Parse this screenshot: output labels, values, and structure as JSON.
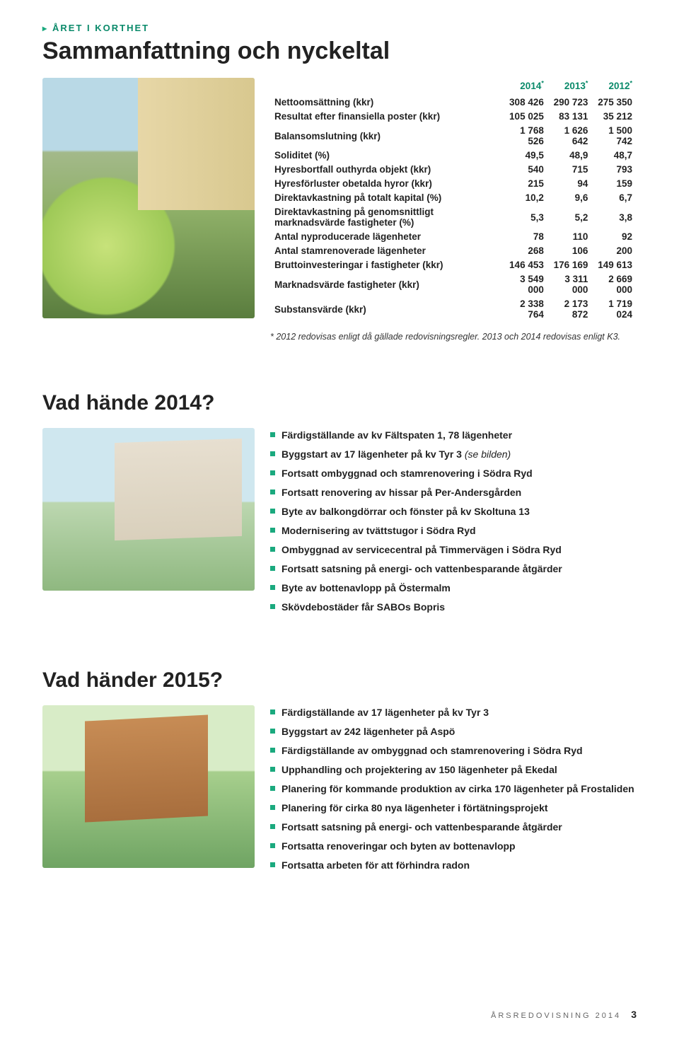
{
  "section_tag": "ÅRET I KORTHET",
  "main_title": "Sammanfattning och nyckeltal",
  "kpi": {
    "headers": [
      "2014*",
      "2013*",
      "2012*"
    ],
    "rows": [
      {
        "label": "Nettoomsättning (kkr)",
        "v": [
          "308 426",
          "290 723",
          "275 350"
        ]
      },
      {
        "label": "Resultat efter finansiella poster (kkr)",
        "v": [
          "105 025",
          "83 131",
          "35 212"
        ]
      },
      {
        "label": "Balansomslutning (kkr)",
        "v": [
          "1 768 526",
          "1 626 642",
          "1 500 742"
        ]
      },
      {
        "label": "Soliditet (%)",
        "v": [
          "49,5",
          "48,9",
          "48,7"
        ]
      },
      {
        "label": "Hyresbortfall outhyrda objekt (kkr)",
        "v": [
          "540",
          "715",
          "793"
        ]
      },
      {
        "label": "Hyresförluster obetalda hyror (kkr)",
        "v": [
          "215",
          "94",
          "159"
        ]
      },
      {
        "label": "Direktavkastning på totalt kapital (%)",
        "v": [
          "10,2",
          "9,6",
          "6,7"
        ]
      },
      {
        "label": "Direktavkastning på genomsnittligt marknadsvärde fastigheter (%)",
        "v": [
          "5,3",
          "5,2",
          "3,8"
        ]
      },
      {
        "label": "Antal nyproducerade lägenheter",
        "v": [
          "78",
          "110",
          "92"
        ]
      },
      {
        "label": "Antal stamrenoverade lägenheter",
        "v": [
          "268",
          "106",
          "200"
        ]
      },
      {
        "label": "Bruttoinvesteringar i fastigheter (kkr)",
        "v": [
          "146 453",
          "176 169",
          "149 613"
        ]
      },
      {
        "label": "Marknadsvärde fastigheter (kkr)",
        "v": [
          "3 549 000",
          "3 311 000",
          "2 669 000"
        ]
      },
      {
        "label": "Substansvärde (kkr)",
        "v": [
          "2 338 764",
          "2 173 872",
          "1 719 024"
        ]
      }
    ],
    "footnote": "* 2012 redovisas enligt då gällade redovisningsregler. 2013 och 2014 redovisas enligt K3."
  },
  "sec2014": {
    "title": "Vad hände 2014?",
    "items": [
      {
        "t": "Färdigställande av kv Fältspaten 1, 78 lägenheter"
      },
      {
        "t": "Byggstart av 17 lägenheter på kv Tyr 3",
        "paren": "(se bilden)"
      },
      {
        "t": "Fortsatt ombyggnad och stamrenovering i Södra Ryd"
      },
      {
        "t": "Fortsatt renovering av hissar på Per-Andersgården"
      },
      {
        "t": "Byte av balkongdörrar och fönster på kv Skoltuna 13"
      },
      {
        "t": "Modernisering av tvättstugor i Södra Ryd"
      },
      {
        "t": "Ombyggnad av servicecentral på Timmervägen i Södra Ryd"
      },
      {
        "t": "Fortsatt satsning på energi- och vattenbesparande åtgärder"
      },
      {
        "t": "Byte av bottenavlopp på Östermalm"
      },
      {
        "t": "Skövdebostäder får SABOs Bopris"
      }
    ]
  },
  "sec2015": {
    "title": "Vad händer 2015?",
    "items": [
      {
        "t": "Färdigställande av 17 lägenheter på kv Tyr 3"
      },
      {
        "t": "Byggstart av 242 lägenheter på Aspö"
      },
      {
        "t": "Färdigställande av ombyggnad och stamrenovering i Södra Ryd"
      },
      {
        "t": "Upphandling och projektering av 150 lägenheter på Ekedal"
      },
      {
        "t": "Planering för kommande produktion av cirka 170 lägenheter på Frostaliden"
      },
      {
        "t": "Planering för cirka 80 nya lägenheter i förtätningsprojekt"
      },
      {
        "t": "Fortsatt satsning på energi- och vattenbesparande åtgärder"
      },
      {
        "t": "Fortsatta renoveringar och byten av bottenavlopp"
      },
      {
        "t": "Fortsatta arbeten för att förhindra radon"
      }
    ]
  },
  "footer": {
    "text": "ÅRSREDOVISNING 2014",
    "page": "3"
  },
  "colors": {
    "accent": "#0a8a6a",
    "bullet": "#1aa97e",
    "text": "#222222",
    "bg": "#ffffff"
  }
}
